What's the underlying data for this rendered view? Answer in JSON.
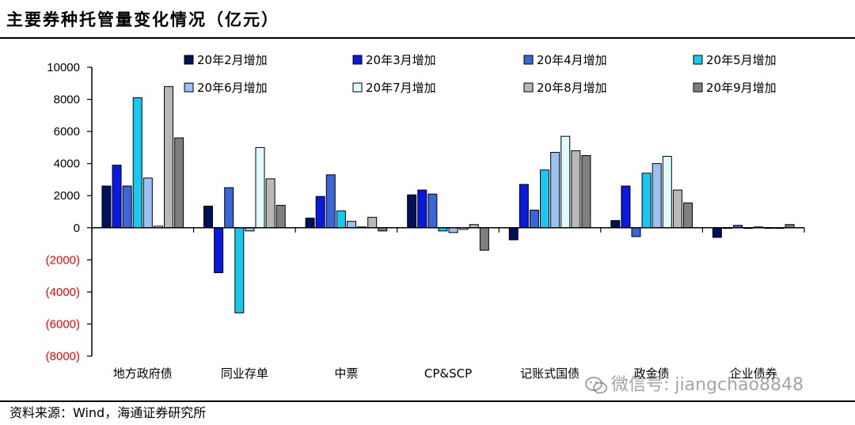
{
  "page": {
    "title": "主要券种托管量变化情况（亿元）",
    "source": "资料来源：Wind，海通证券研究所",
    "watermark": "微信号: jiangchao8848"
  },
  "chart_data": {
    "type": "bar",
    "title": "主要券种托管量变化情况（亿元）",
    "xlabel": "",
    "ylabel": "",
    "ylim": [
      -8000,
      10000
    ],
    "yticks": [
      10000,
      8000,
      6000,
      4000,
      2000,
      0,
      -2000,
      -4000,
      -6000,
      -8000
    ],
    "ytick_labels": [
      "10000",
      "8000",
      "6000",
      "4000",
      "2000",
      "0",
      "(2000)",
      "(4000)",
      "(6000)",
      "(8000)"
    ],
    "negative_tick_color": "#ff0000",
    "grid": false,
    "legend_position": "top",
    "categories": [
      "地方政府债",
      "同业存单",
      "中票",
      "CP&SCP",
      "记账式国债",
      "政金债",
      "企业债券"
    ],
    "series": [
      {
        "name": "20年2月增加",
        "color": "#00105a",
        "values": [
          2600,
          1350,
          600,
          2050,
          -750,
          450,
          -600
        ]
      },
      {
        "name": "20年3月增加",
        "color": "#0a19e0",
        "values": [
          3900,
          -2800,
          1950,
          2350,
          2700,
          2600,
          0
        ]
      },
      {
        "name": "20年4月增加",
        "color": "#3a66d8",
        "values": [
          2600,
          2500,
          3300,
          2100,
          1100,
          -550,
          150
        ]
      },
      {
        "name": "20年5月增加",
        "color": "#18c8f0",
        "values": [
          8100,
          -5300,
          1050,
          -200,
          3600,
          3400,
          0
        ]
      },
      {
        "name": "20年6月增加",
        "color": "#99c2f2",
        "values": [
          3100,
          -200,
          400,
          -300,
          4700,
          4000,
          50
        ]
      },
      {
        "name": "20年7月增加",
        "color": "#e0fbfb",
        "values": [
          100,
          5000,
          50,
          -100,
          5700,
          4450,
          0
        ]
      },
      {
        "name": "20年8月增加",
        "color": "#b8b8b8",
        "values": [
          8800,
          3050,
          650,
          200,
          4800,
          2350,
          0
        ]
      },
      {
        "name": "20年9月增加",
        "color": "#7f7f7f",
        "values": [
          5600,
          1400,
          -200,
          -1400,
          4500,
          1550,
          200
        ]
      }
    ]
  }
}
